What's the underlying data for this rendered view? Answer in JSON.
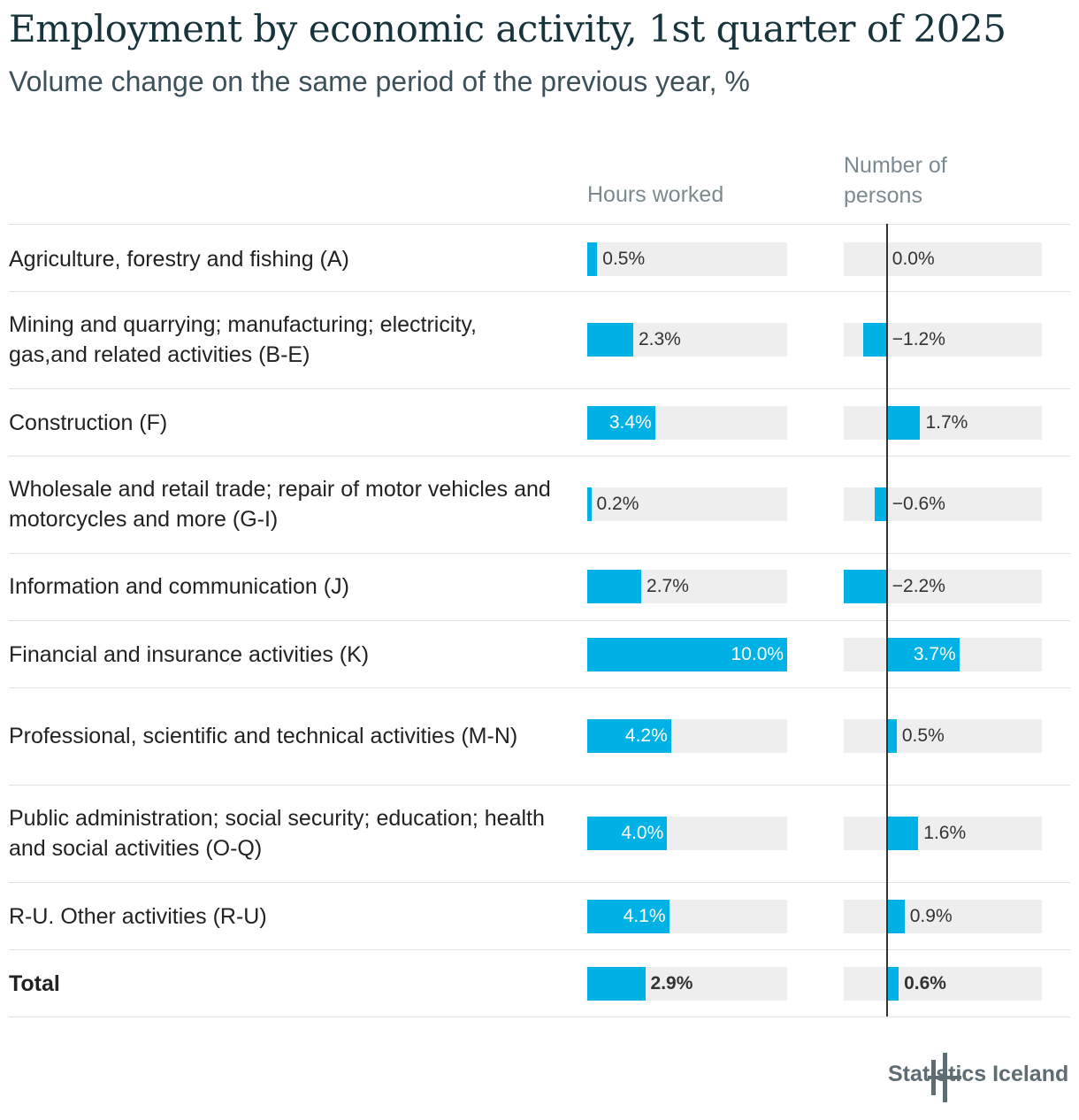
{
  "title": "Employment by economic activity, 1st quarter of 2025",
  "subtitle": "Volume change on the same period of the previous year, %",
  "columns": {
    "hours": "Hours worked",
    "persons": "Number of persons"
  },
  "brand": {
    "name": "Statistics Iceland"
  },
  "colors": {
    "bar": "#00b1e6",
    "track": "#eeeeee",
    "title": "#17343d"
  },
  "chart_data": {
    "type": "bar",
    "orientation": "horizontal",
    "categories": [
      "Agriculture, forestry and fishing (A)",
      "Mining and quarrying; manufacturing; electricity, gas,and related activities (B-E)",
      "Construction (F)",
      "Wholesale and retail trade; repair of motor vehicles and motorcycles and more (G-I)",
      "Information and communication (J)",
      "Financial and insurance activities (K)",
      "Professional, scientific and technical activities (M-N)",
      "Public administration; social security; education; health and social activities (O-Q)",
      "R-U. Other activities (R-U)",
      "Total"
    ],
    "series": [
      {
        "name": "Hours worked",
        "values": [
          0.5,
          2.3,
          3.4,
          0.2,
          2.7,
          10.0,
          4.2,
          4.0,
          4.1,
          2.9
        ],
        "labels": [
          "0.5%",
          "2.3%",
          "3.4%",
          "0.2%",
          "2.7%",
          "10.0%",
          "4.2%",
          "4.0%",
          "4.1%",
          "2.9%"
        ],
        "xlim": [
          0,
          10
        ]
      },
      {
        "name": "Number of persons",
        "values": [
          0.0,
          -1.2,
          1.7,
          -0.6,
          -2.2,
          3.7,
          0.5,
          1.6,
          0.9,
          0.6
        ],
        "labels": [
          "0.0%",
          "−1.2%",
          "1.7%",
          "−0.6%",
          "−2.2%",
          "3.7%",
          "0.5%",
          "1.6%",
          "0.9%",
          "0.6%"
        ],
        "xlim": [
          -2.2,
          7.9
        ]
      }
    ]
  }
}
